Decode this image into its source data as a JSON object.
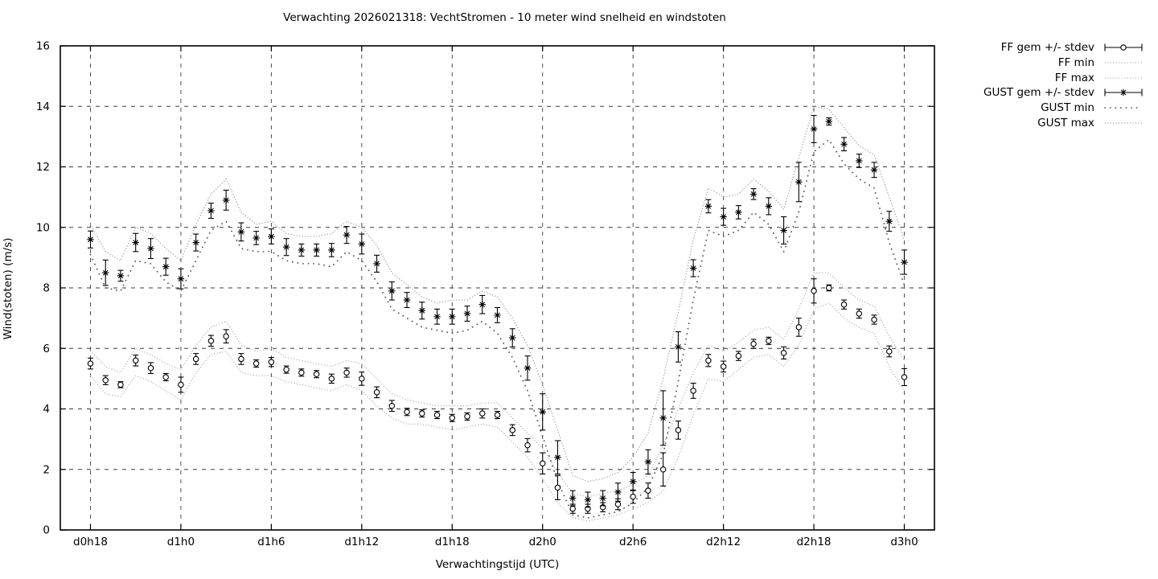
{
  "chart": {
    "title": "Verwachting 2026021318: VechtStromen - 10 meter wind snelheid en windstoten",
    "xlabel": "Verwachtingstijd (UTC)",
    "ylabel": "Wind(stoten) (m/s)"
  },
  "legend": {
    "position": "outside-top-right",
    "items": [
      {
        "label": "FF gem +/- stdev",
        "series": "ff_gem"
      },
      {
        "label": "FF min",
        "series": "ff_min"
      },
      {
        "label": "FF max",
        "series": "ff_max"
      },
      {
        "label": "GUST gem +/- stdev",
        "series": "gust_gem"
      },
      {
        "label": "GUST min",
        "series": "gust_min"
      },
      {
        "label": "GUST max",
        "series": "gust_max"
      }
    ]
  },
  "chart_data": {
    "type": "line",
    "title": "Verwachting 2026021318: VechtStromen - 10 meter wind snelheid en windstoten",
    "xlabel": "Verwachtingstijd (UTC)",
    "ylabel": "Wind(stoten) (m/s)",
    "grid": true,
    "background": "#ffffff",
    "axis_color": "#000000",
    "x_start_hour": 18,
    "x_step_hours": 1,
    "xlim_hours": [
      16,
      74
    ],
    "ylim": [
      0,
      16
    ],
    "y_ticks": [
      0,
      2,
      4,
      6,
      8,
      10,
      12,
      14,
      16
    ],
    "x_tick_hours": [
      18,
      24,
      30,
      36,
      42,
      48,
      54,
      60,
      66,
      72
    ],
    "x_tick_labels": [
      "d0h18",
      "d1h0",
      "d1h6",
      "d1h12",
      "d1h18",
      "d2h0",
      "d2h6",
      "d2h12",
      "d2h18",
      "d3h0"
    ],
    "series": [
      {
        "id": "ff_gem",
        "name": "FF gem +/- stdev",
        "style": "errorbar",
        "marker": "circle",
        "color": "#000000",
        "values": [
          5.5,
          4.95,
          4.8,
          5.6,
          5.35,
          5.05,
          4.8,
          5.65,
          6.25,
          6.4,
          5.65,
          5.5,
          5.55,
          5.3,
          5.2,
          5.15,
          5.0,
          5.2,
          5.0,
          4.55,
          4.1,
          3.9,
          3.85,
          3.8,
          3.7,
          3.75,
          3.85,
          3.8,
          3.3,
          2.8,
          2.2,
          1.4,
          0.7,
          0.7,
          0.75,
          0.85,
          1.1,
          1.3,
          2.0,
          3.3,
          4.6,
          5.6,
          5.4,
          5.75,
          6.15,
          6.25,
          5.85,
          6.7,
          7.9,
          8.0,
          7.45,
          7.15,
          6.95,
          5.9,
          5.05
        ],
        "stdev": [
          0.18,
          0.15,
          0.1,
          0.18,
          0.18,
          0.12,
          0.25,
          0.18,
          0.18,
          0.22,
          0.18,
          0.12,
          0.15,
          0.12,
          0.12,
          0.12,
          0.15,
          0.15,
          0.22,
          0.18,
          0.18,
          0.12,
          0.12,
          0.12,
          0.12,
          0.12,
          0.15,
          0.12,
          0.18,
          0.22,
          0.35,
          0.4,
          0.15,
          0.15,
          0.15,
          0.18,
          0.22,
          0.25,
          0.55,
          0.3,
          0.25,
          0.2,
          0.18,
          0.15,
          0.15,
          0.12,
          0.2,
          0.3,
          0.4,
          0.1,
          0.15,
          0.15,
          0.15,
          0.18,
          0.28
        ]
      },
      {
        "id": "ff_min",
        "name": "FF min",
        "style": "dotted",
        "color": "#b0b0b0",
        "values": [
          5.1,
          4.5,
          4.4,
          5.1,
          4.9,
          4.6,
          4.3,
          5.2,
          5.8,
          5.9,
          5.2,
          5.1,
          5.1,
          4.9,
          4.8,
          4.7,
          4.6,
          4.8,
          4.6,
          4.1,
          3.7,
          3.5,
          3.5,
          3.4,
          3.3,
          3.4,
          3.5,
          3.4,
          2.9,
          2.4,
          1.7,
          0.9,
          0.4,
          0.3,
          0.4,
          0.5,
          0.7,
          0.9,
          1.3,
          2.4,
          3.8,
          5.0,
          4.9,
          5.3,
          5.7,
          5.8,
          5.4,
          6.1,
          7.3,
          7.5,
          7.0,
          6.7,
          6.5,
          5.4,
          4.6
        ]
      },
      {
        "id": "ff_max",
        "name": "FF max",
        "style": "dotted",
        "color": "#b0b0b0",
        "values": [
          5.9,
          5.4,
          5.2,
          6.0,
          5.8,
          5.5,
          5.3,
          6.1,
          6.7,
          6.9,
          6.1,
          5.9,
          6.0,
          5.7,
          5.6,
          5.5,
          5.4,
          5.6,
          5.5,
          5.0,
          4.5,
          4.3,
          4.2,
          4.1,
          4.1,
          4.1,
          4.2,
          4.2,
          3.7,
          3.2,
          2.7,
          1.9,
          1.2,
          1.1,
          1.2,
          1.3,
          1.5,
          1.8,
          2.8,
          4.0,
          5.2,
          6.1,
          5.9,
          6.2,
          6.6,
          6.7,
          6.3,
          7.3,
          8.5,
          8.5,
          8.0,
          7.6,
          7.4,
          6.4,
          5.6
        ]
      },
      {
        "id": "gust_gem",
        "name": "GUST gem +/- stdev",
        "style": "errorbar",
        "marker": "star",
        "color": "#000000",
        "values": [
          9.6,
          8.5,
          8.4,
          9.5,
          9.3,
          8.7,
          8.3,
          9.5,
          10.55,
          10.9,
          9.85,
          9.65,
          9.7,
          9.35,
          9.25,
          9.25,
          9.25,
          9.75,
          9.45,
          8.8,
          7.9,
          7.6,
          7.25,
          7.05,
          7.05,
          7.15,
          7.45,
          7.1,
          6.35,
          5.35,
          3.9,
          2.4,
          1.05,
          1.0,
          1.05,
          1.25,
          1.6,
          2.25,
          3.7,
          6.05,
          8.65,
          10.7,
          10.35,
          10.5,
          11.1,
          10.7,
          9.9,
          11.5,
          13.25,
          13.5,
          12.75,
          12.2,
          11.9,
          10.2,
          8.85
        ],
        "stdev": [
          0.28,
          0.42,
          0.18,
          0.3,
          0.33,
          0.28,
          0.33,
          0.28,
          0.25,
          0.33,
          0.3,
          0.22,
          0.25,
          0.28,
          0.2,
          0.2,
          0.22,
          0.28,
          0.33,
          0.28,
          0.3,
          0.25,
          0.28,
          0.25,
          0.25,
          0.25,
          0.3,
          0.25,
          0.3,
          0.4,
          0.6,
          0.55,
          0.25,
          0.25,
          0.25,
          0.3,
          0.3,
          0.4,
          0.9,
          0.5,
          0.28,
          0.22,
          0.28,
          0.22,
          0.18,
          0.28,
          0.45,
          0.65,
          0.45,
          0.12,
          0.22,
          0.22,
          0.25,
          0.33,
          0.4
        ]
      },
      {
        "id": "gust_min",
        "name": "GUST min",
        "style": "dotted-sparse",
        "color": "#555555",
        "values": [
          9.1,
          8.0,
          7.9,
          8.9,
          8.8,
          8.2,
          7.9,
          8.9,
          9.9,
          10.2,
          9.3,
          9.2,
          9.2,
          8.9,
          8.8,
          8.8,
          8.7,
          9.2,
          8.9,
          8.2,
          7.3,
          7.0,
          6.7,
          6.6,
          6.5,
          6.6,
          6.9,
          6.5,
          5.7,
          4.6,
          3.1,
          1.6,
          0.5,
          0.4,
          0.5,
          0.6,
          0.9,
          1.4,
          2.5,
          4.9,
          7.6,
          9.9,
          9.7,
          9.9,
          10.5,
          10.1,
          9.2,
          10.5,
          12.5,
          12.9,
          12.1,
          11.6,
          11.3,
          9.5,
          8.1
        ]
      },
      {
        "id": "gust_max",
        "name": "GUST max",
        "style": "dotted",
        "color": "#9a9a9a",
        "values": [
          10.1,
          9.2,
          8.9,
          10.0,
          9.8,
          9.3,
          8.9,
          10.1,
          11.1,
          11.6,
          10.5,
          10.1,
          10.2,
          9.8,
          9.7,
          9.7,
          9.8,
          10.2,
          10.0,
          9.4,
          8.5,
          8.1,
          7.7,
          7.5,
          7.6,
          7.6,
          7.9,
          7.7,
          7.0,
          6.1,
          4.8,
          3.3,
          1.8,
          1.6,
          1.7,
          1.9,
          2.4,
          3.2,
          5.0,
          7.2,
          9.6,
          11.3,
          11.0,
          11.1,
          11.6,
          11.2,
          10.6,
          12.3,
          14.0,
          13.9,
          13.3,
          12.7,
          12.4,
          11.0,
          9.6
        ]
      }
    ]
  }
}
